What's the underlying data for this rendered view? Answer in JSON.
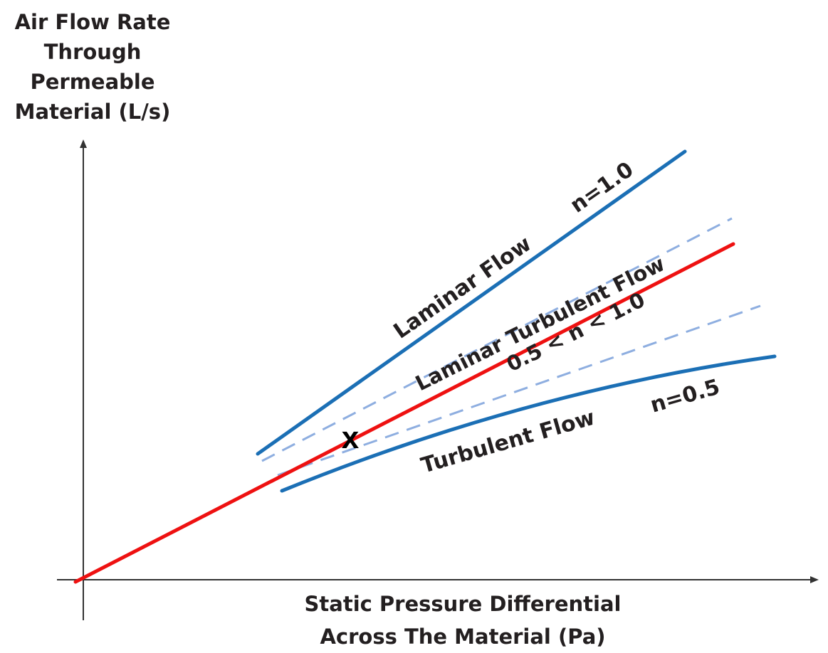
{
  "axes": {
    "y_label": [
      "Air Flow Rate",
      "Through",
      "Permeable",
      "Material (L/s)"
    ],
    "x_label": [
      "Static Pressure Differential",
      "Across The Material (Pa)"
    ]
  },
  "curves": {
    "laminar": {
      "label": "Laminar Flow",
      "exponent_label": "n=1.0"
    },
    "transition": {
      "label": "Laminar Turbulent Flow",
      "exponent_label": "0.5 < n < 1.0"
    },
    "turbulent": {
      "label": "Turbulent Flow",
      "exponent_label": "n=0.5"
    }
  },
  "marker": {
    "label": "x"
  },
  "colors": {
    "solid_curve": "#1b6fb5",
    "dashed_curve": "#8eaee0",
    "fit_line": "#ee1111",
    "axis": "#333333",
    "text": "#231f20"
  }
}
